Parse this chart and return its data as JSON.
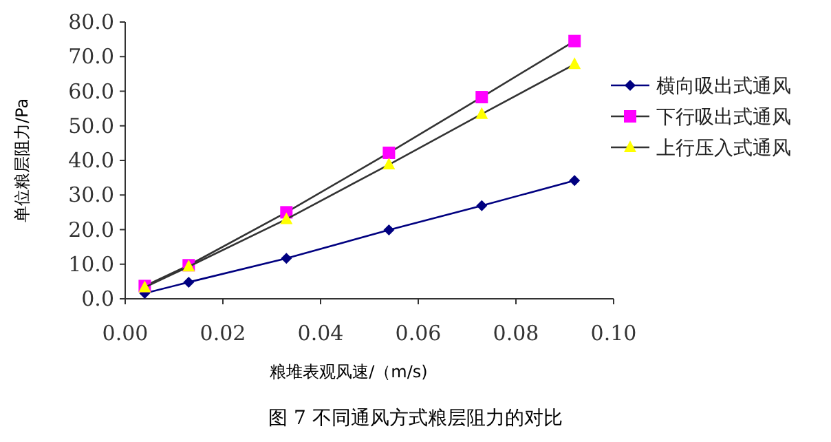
{
  "chart_data": {
    "type": "line",
    "title": "图 7  不同通风方式粮层阻力的对比",
    "xlabel": "粮堆表观风速/（m/s)",
    "ylabel": "单位粮层阻力/Pa",
    "x": [
      0.004,
      0.013,
      0.033,
      0.054,
      0.073,
      0.092
    ],
    "series": [
      {
        "name": "横向吸出式通风",
        "color": "#000080",
        "marker": "diamond",
        "values": [
          1.6,
          4.8,
          11.7,
          19.9,
          26.9,
          34.2
        ]
      },
      {
        "name": "下行吸出式通风",
        "color": "#ff00ff",
        "marker": "square",
        "values": [
          3.7,
          9.7,
          25.0,
          42.2,
          58.3,
          74.5
        ]
      },
      {
        "name": "上行压入式通风",
        "color": "#ffff00",
        "marker": "triangle",
        "values": [
          3.3,
          9.3,
          23.0,
          38.8,
          53.4,
          67.8
        ]
      }
    ],
    "xlim": [
      0,
      0.1
    ],
    "ylim": [
      0,
      80
    ],
    "xticks": [
      {
        "value": 0,
        "label": "0.00"
      },
      {
        "value": 0.02,
        "label": "0.02"
      },
      {
        "value": 0.04,
        "label": "0.04"
      },
      {
        "value": 0.06,
        "label": "0.06"
      },
      {
        "value": 0.08,
        "label": "0.08"
      },
      {
        "value": 0.1,
        "label": "0.10"
      }
    ],
    "yticks": [
      {
        "value": 0,
        "label": "0.0"
      },
      {
        "value": 10,
        "label": "10.0"
      },
      {
        "value": 20,
        "label": "20.0"
      },
      {
        "value": 30,
        "label": "30.0"
      },
      {
        "value": 40,
        "label": "40.0"
      },
      {
        "value": 50,
        "label": "50.0"
      },
      {
        "value": 60,
        "label": "60.0"
      },
      {
        "value": 70,
        "label": "70.0"
      },
      {
        "value": 80,
        "label": "80.0"
      }
    ],
    "grid": false,
    "legend": "right",
    "line_style": "solid"
  }
}
